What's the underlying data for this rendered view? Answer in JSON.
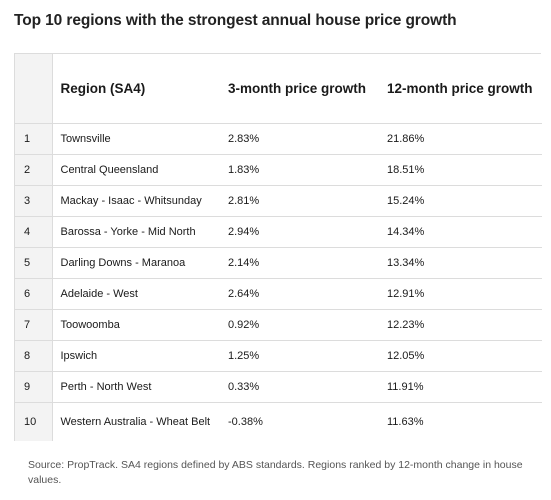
{
  "title": "Top 10 regions with the strongest annual house price growth",
  "table": {
    "headers": [
      "",
      "Region (SA4)",
      "3-month price growth",
      "12-month price growth"
    ],
    "rows": [
      {
        "rank": "1",
        "region": "Townsville",
        "three_month": "2.83%",
        "twelve_month": "21.86%"
      },
      {
        "rank": "2",
        "region": "Central Queensland",
        "three_month": "1.83%",
        "twelve_month": "18.51%"
      },
      {
        "rank": "3",
        "region": "Mackay - Isaac - Whitsunday",
        "three_month": "2.81%",
        "twelve_month": "15.24%"
      },
      {
        "rank": "4",
        "region": "Barossa - Yorke - Mid North",
        "three_month": "2.94%",
        "twelve_month": "14.34%"
      },
      {
        "rank": "5",
        "region": "Darling Downs - Maranoa",
        "three_month": "2.14%",
        "twelve_month": "13.34%"
      },
      {
        "rank": "6",
        "region": "Adelaide - West",
        "three_month": "2.64%",
        "twelve_month": "12.91%"
      },
      {
        "rank": "7",
        "region": "Toowoomba",
        "three_month": "0.92%",
        "twelve_month": "12.23%"
      },
      {
        "rank": "8",
        "region": "Ipswich",
        "three_month": "1.25%",
        "twelve_month": "12.05%"
      },
      {
        "rank": "9",
        "region": "Perth - North West",
        "three_month": "0.33%",
        "twelve_month": "11.91%"
      },
      {
        "rank": "10",
        "region": "Western Australia - Wheat Belt",
        "three_month": "-0.38%",
        "twelve_month": "11.63%"
      }
    ]
  },
  "source": "Source: PropTrack. SA4 regions defined by ABS standards. Regions ranked by 12-month change in house values."
}
